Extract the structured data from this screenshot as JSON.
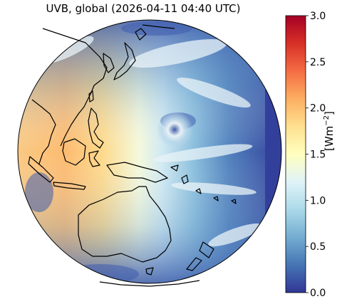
{
  "title": "UVB, global (2026-04-11 04:40 UTC)",
  "colorbar": {
    "label_prefix": "[Wm",
    "label_exponent": "−2",
    "label_suffix": "]",
    "min": 0.0,
    "max": 3.0,
    "ticks": [
      "0.0",
      "0.5",
      "1.0",
      "1.5",
      "2.0",
      "2.5",
      "3.0"
    ],
    "colors": [
      "#313695",
      "#4575b4",
      "#74add1",
      "#abd9e9",
      "#e0f3f8",
      "#ffffbf",
      "#fee090",
      "#fdae61",
      "#f46d43",
      "#d73027",
      "#a50026"
    ]
  },
  "map_colors": {
    "day_side": "#fdbf73",
    "terminator": "#e8f4f8",
    "night_side": "#3b4fa3",
    "coastline": "#000000"
  }
}
